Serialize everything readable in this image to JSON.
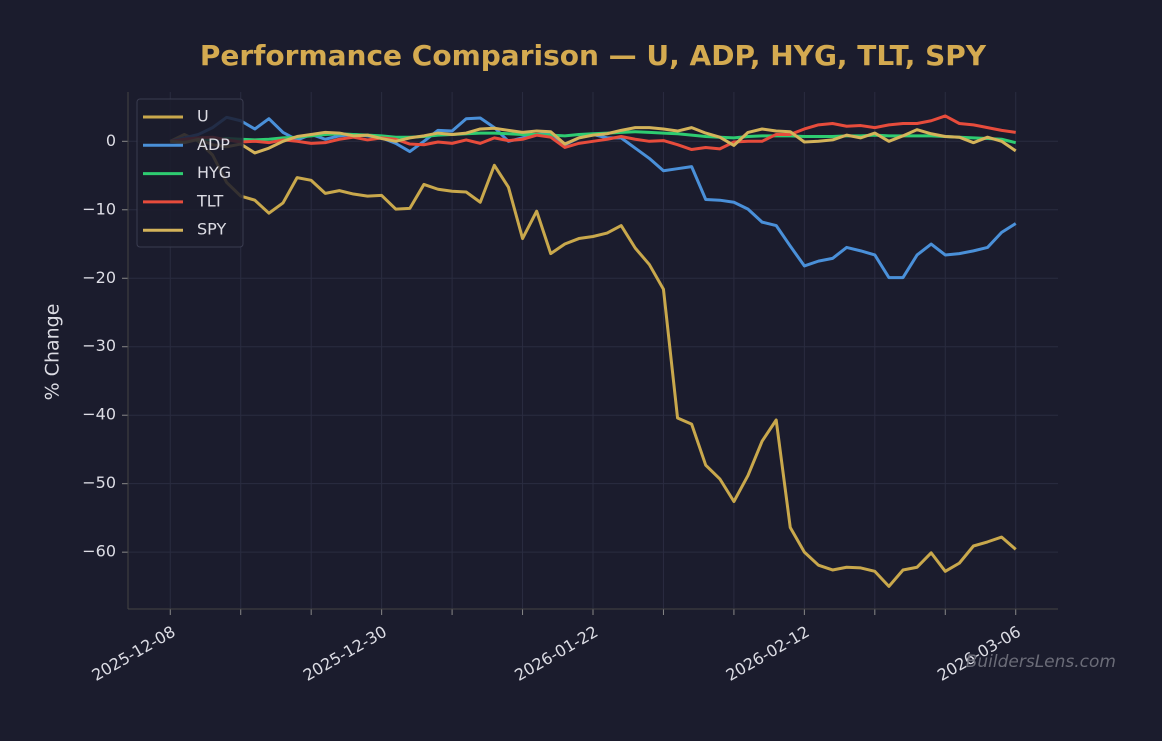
{
  "chart_data": {
    "type": "line",
    "title": "Performance Comparison — U, ADP, HYG, TLT, SPY",
    "y_label": "% Change",
    "watermark": "BuildersLens.com",
    "categories": [
      "2025-12-08",
      null,
      null,
      null,
      null,
      null,
      null,
      null,
      null,
      null,
      null,
      null,
      null,
      null,
      null,
      "2025-12-30",
      null,
      null,
      null,
      null,
      null,
      null,
      null,
      null,
      null,
      null,
      null,
      null,
      null,
      null,
      "2026-01-22",
      null,
      null,
      null,
      null,
      null,
      null,
      null,
      null,
      null,
      null,
      null,
      null,
      null,
      null,
      "2026-02-12",
      null,
      null,
      null,
      null,
      null,
      null,
      null,
      null,
      null,
      null,
      null,
      null,
      null,
      null,
      "2026-03-06"
    ],
    "ylim": [
      -68.3,
      7.2
    ],
    "yticks": [
      {
        "value": 0,
        "label": "0"
      },
      {
        "value": -10,
        "label": "−10"
      },
      {
        "value": -20,
        "label": "−20"
      },
      {
        "value": -30,
        "label": "−30"
      },
      {
        "value": -40,
        "label": "−40"
      },
      {
        "value": -50,
        "label": "−50"
      },
      {
        "value": -60,
        "label": "−60"
      }
    ],
    "grid": true,
    "legend": "upper left",
    "series": [
      {
        "name": "U",
        "color": "#c9a84c",
        "values": [
          0,
          1,
          0,
          -2,
          -6,
          -8,
          -8.6,
          -10.5,
          -9,
          -5.3,
          -5.7,
          -7.6,
          -7.2,
          -7.7,
          -8,
          -7.9,
          -9.9,
          -9.8,
          -6.3,
          -7,
          -7.3,
          -7.4,
          -8.9,
          -3.5,
          -6.7,
          -14.2,
          -10.2,
          -16.4,
          -15,
          -14.2,
          -13.9,
          -13.4,
          -12.3,
          -15.6,
          -18,
          -21.6,
          -40.4,
          -41.3,
          -47.3,
          -49.3,
          -52.6,
          -48.8,
          -43.8,
          -40.7,
          -56.4,
          -60,
          -61.9,
          -62.6,
          -62.2,
          -62.3,
          -62.8,
          -65,
          -62.6,
          -62.2,
          -60.1,
          -62.8,
          -61.6,
          -59.1,
          -58.5,
          -57.8,
          -59.6
        ]
      },
      {
        "name": "ADP",
        "color": "#4a90d9",
        "values": [
          0,
          0.5,
          1,
          2,
          3.5,
          3,
          1.8,
          3.3,
          1.3,
          0.2,
          1,
          0.3,
          0.8,
          1,
          0.8,
          0.5,
          -0.3,
          -1.5,
          0,
          1.6,
          1.5,
          3.3,
          3.4,
          2,
          0,
          0.5,
          1,
          1.2,
          -0.5,
          0.5,
          1,
          0.5,
          0.5,
          -1,
          -2.5,
          -4.3,
          -4,
          -3.7,
          -8.5,
          -8.6,
          -8.9,
          -9.9,
          -11.8,
          -12.3,
          -15.3,
          -18.2,
          -17.5,
          -17.1,
          -15.5,
          -16,
          -16.6,
          -19.9,
          -19.9,
          -16.6,
          -15,
          -16.6,
          -16.4,
          -16,
          -15.5,
          -13.3,
          -12
        ]
      },
      {
        "name": "HYG",
        "color": "#2ecc71",
        "values": [
          0,
          0.1,
          0.2,
          0.3,
          0.4,
          0.3,
          0.2,
          0.3,
          0.5,
          0.6,
          0.8,
          1,
          1.1,
          1,
          0.9,
          0.8,
          0.6,
          0.6,
          0.7,
          0.9,
          1,
          1.1,
          1.2,
          1.2,
          1.1,
          1,
          1,
          0.9,
          0.8,
          1,
          1.1,
          1.2,
          1.3,
          1.4,
          1.3,
          1.2,
          1.1,
          0.9,
          0.7,
          0.6,
          0.5,
          0.7,
          0.8,
          0.8,
          0.8,
          0.7,
          0.7,
          0.7,
          0.8,
          0.8,
          0.9,
          0.8,
          0.8,
          0.8,
          0.8,
          0.7,
          0.6,
          0.5,
          0.4,
          0.3,
          -0.2
        ]
      },
      {
        "name": "TLT",
        "color": "#e74c3c",
        "values": [
          0,
          0.3,
          0.5,
          0.6,
          0.2,
          -0.1,
          0,
          -0.2,
          0.2,
          0,
          -0.3,
          -0.2,
          0.3,
          0.6,
          0.2,
          0.5,
          0.3,
          -0.4,
          -0.5,
          -0.1,
          -0.3,
          0.2,
          -0.3,
          0.5,
          0.1,
          0.3,
          0.9,
          0.6,
          -0.9,
          -0.3,
          0,
          0.3,
          0.7,
          0.3,
          0,
          0.1,
          -0.5,
          -1.2,
          -0.9,
          -1.1,
          -0.1,
          0,
          0,
          1,
          1,
          1.8,
          2.4,
          2.6,
          2.2,
          2.3,
          2,
          2.4,
          2.6,
          2.6,
          3,
          3.7,
          2.6,
          2.4,
          2,
          1.6,
          1.3
        ]
      },
      {
        "name": "SPY",
        "color": "#d4b35a",
        "values": [
          0,
          -0.2,
          0.3,
          -0.5,
          -0.8,
          -0.4,
          -1.7,
          -1,
          0,
          0.7,
          1,
          1.3,
          1.2,
          0.8,
          0.9,
          0.4,
          0,
          0.5,
          0.8,
          1.2,
          1,
          1.2,
          1.8,
          1.9,
          1.6,
          1.3,
          1.5,
          1.4,
          -0.4,
          0.5,
          0.9,
          1.1,
          1.6,
          2,
          2,
          1.8,
          1.5,
          2,
          1.2,
          0.6,
          -0.6,
          1.3,
          1.8,
          1.5,
          1.4,
          -0.1,
          0,
          0.2,
          0.9,
          0.5,
          1.2,
          0,
          0.8,
          1.7,
          1.1,
          0.7,
          0.6,
          -0.2,
          0.6,
          0,
          -1.4
        ]
      }
    ]
  }
}
